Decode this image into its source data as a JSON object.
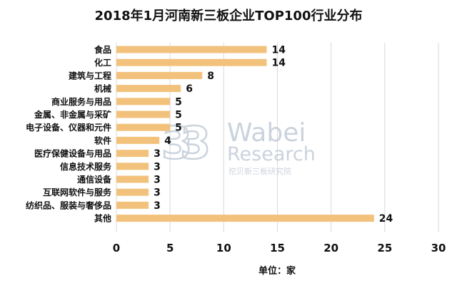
{
  "chart_data": {
    "type": "bar",
    "orientation": "horizontal",
    "title": "2018年1月河南新三板企业TOP100行业分布",
    "categories": [
      "食品",
      "化工",
      "建筑与工程",
      "机械",
      "商业服务与用品",
      "金属、非金属与采矿",
      "电子设备、仪器和元件",
      "软件",
      "医疗保健设备与用品",
      "信息技术服务",
      "通信设备",
      "互联网软件与服务",
      "纺织品、服装与奢侈品",
      "其他"
    ],
    "values": [
      14,
      14,
      8,
      6,
      5,
      5,
      5,
      4,
      3,
      3,
      3,
      3,
      3,
      24
    ],
    "xlabel": "单位：家",
    "ylabel": "",
    "xlim": [
      0,
      30
    ],
    "xticks": [
      0,
      5,
      10,
      15,
      20,
      25,
      30
    ],
    "grid": true,
    "legend": "none",
    "bar_color": "#f2c27c",
    "grid_color": "#d9d9d9"
  },
  "watermark": {
    "logo_text": "Wabei",
    "line2": "Research",
    "line3": "挖贝新三板研究院",
    "mark": "3"
  }
}
